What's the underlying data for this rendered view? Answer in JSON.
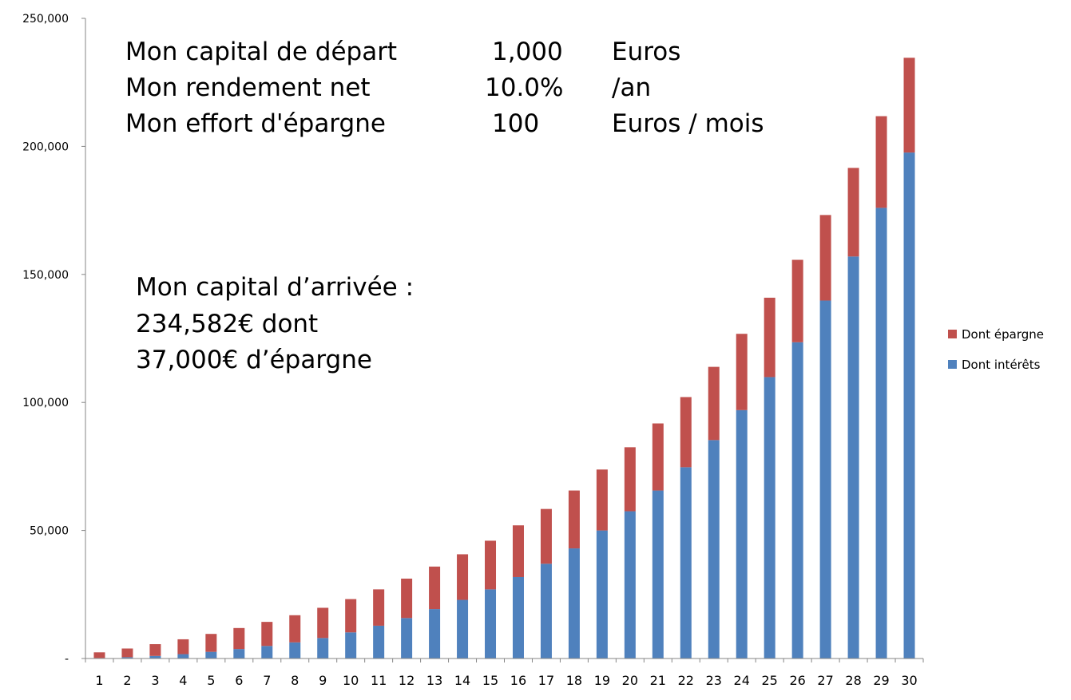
{
  "info": {
    "rows": [
      {
        "label": "Mon capital de départ",
        "value": "1,000",
        "unit": "Euros"
      },
      {
        "label": "Mon rendement net",
        "value": "10.0%",
        "unit": "/an"
      },
      {
        "label": "Mon effort d'épargne",
        "value": "100",
        "unit": "Euros / mois"
      }
    ]
  },
  "result": {
    "line1": "Mon capital d’arrivée :",
    "line2": "234,582€  dont",
    "line3": "37,000€ d’épargne"
  },
  "chart_data": {
    "type": "bar",
    "stacked": true,
    "categories": [
      "1",
      "2",
      "3",
      "4",
      "5",
      "6",
      "7",
      "8",
      "9",
      "10",
      "11",
      "12",
      "13",
      "14",
      "15",
      "16",
      "17",
      "18",
      "19",
      "20",
      "21",
      "22",
      "23",
      "24",
      "25",
      "26",
      "27",
      "28",
      "29",
      "30"
    ],
    "series": [
      {
        "name": "Dont intérêts",
        "color": "#4F81BD",
        "values": [
          200,
          500,
          1000,
          1700,
          2600,
          3700,
          4900,
          6300,
          8000,
          10200,
          12800,
          15800,
          19300,
          22900,
          27000,
          31800,
          37000,
          43000,
          50000,
          57500,
          65600,
          74700,
          85300,
          97000,
          109900,
          123500,
          139800,
          157000,
          176000,
          197600
        ]
      },
      {
        "name": "Dont épargne",
        "color": "#C0504D",
        "values": [
          2200,
          3400,
          4600,
          5800,
          7000,
          8200,
          9400,
          10600,
          11800,
          13000,
          14200,
          15400,
          16600,
          17800,
          19000,
          20200,
          21400,
          22600,
          23800,
          25000,
          26200,
          27400,
          28600,
          29800,
          31000,
          32200,
          33400,
          34600,
          35800,
          37000
        ]
      }
    ],
    "y_ticks": [
      "-",
      "50,000",
      "100,000",
      "150,000",
      "200,000",
      "250,000"
    ],
    "ylim": [
      0,
      250000
    ],
    "grid": false,
    "legend": "right"
  }
}
